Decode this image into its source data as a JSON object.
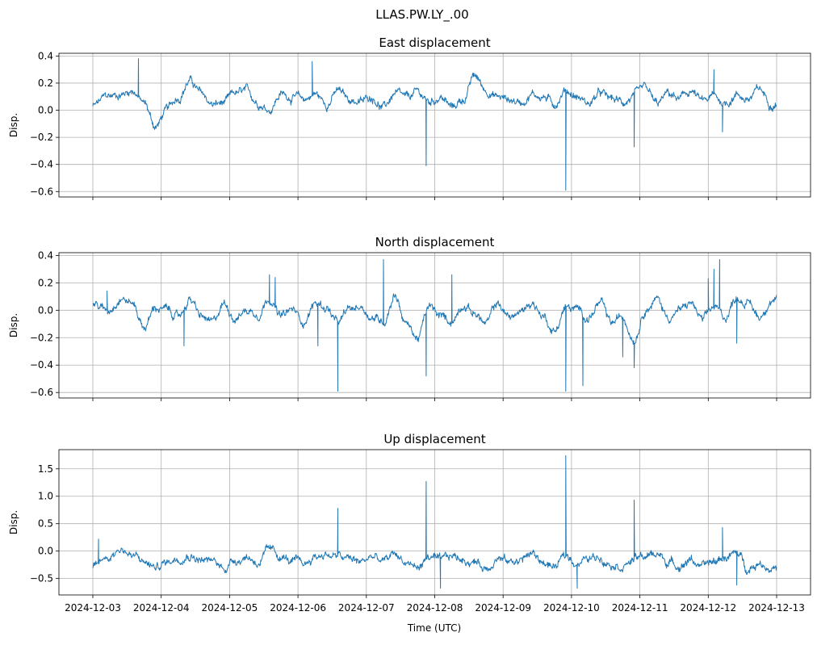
{
  "figure": {
    "suptitle": "LLAS.PW.LY_.00",
    "xlabel": "Time (UTC)",
    "x_tick_labels": [
      "2024-12-03",
      "2024-12-04",
      "2024-12-05",
      "2024-12-06",
      "2024-12-07",
      "2024-12-08",
      "2024-12-09",
      "2024-12-10",
      "2024-12-11",
      "2024-12-12",
      "2024-12-13"
    ],
    "line_color": "#1f77b4",
    "grid_color": "#b0b0b0"
  },
  "chart_data": [
    {
      "type": "line",
      "title": "East displacement",
      "ylabel": "Disp.",
      "x_range": [
        "2024-12-02T16:59",
        "2024-12-13T07:15"
      ],
      "ylim": [
        -0.64,
        0.42
      ],
      "yticks": [
        0.4,
        0.2,
        0.0,
        -0.2,
        -0.4,
        -0.6
      ],
      "ytick_labels": [
        "0.4",
        "0.2",
        "0.0",
        "−0.2",
        "−0.4",
        "−0.6"
      ],
      "grid": true,
      "series": [
        {
          "x": [
            "2024-12-03T00:00",
            "2024-12-03T05:00",
            "2024-12-03T10:00",
            "2024-12-03T14:00",
            "2024-12-03T18:00",
            "2024-12-03T22:00",
            "2024-12-04T02:00",
            "2024-12-04T06:00",
            "2024-12-04T10:00",
            "2024-12-04T14:00",
            "2024-12-04T18:00",
            "2024-12-04T22:00",
            "2024-12-05T02:00",
            "2024-12-05T06:00",
            "2024-12-05T10:00",
            "2024-12-05T14:00",
            "2024-12-05T18:00",
            "2024-12-05T22:00",
            "2024-12-06T02:00",
            "2024-12-06T06:00",
            "2024-12-06T10:00",
            "2024-12-06T14:00",
            "2024-12-06T18:00",
            "2024-12-06T22:00",
            "2024-12-07T02:00",
            "2024-12-07T06:00",
            "2024-12-07T10:00",
            "2024-12-07T14:00",
            "2024-12-07T18:00",
            "2024-12-07T22:00",
            "2024-12-08T02:00",
            "2024-12-08T06:00",
            "2024-12-08T10:00",
            "2024-12-08T14:00",
            "2024-12-08T18:00",
            "2024-12-08T22:00",
            "2024-12-09T02:00",
            "2024-12-09T06:00",
            "2024-12-09T10:00",
            "2024-12-09T14:00",
            "2024-12-09T18:00",
            "2024-12-09T22:00",
            "2024-12-10T02:00",
            "2024-12-10T06:00",
            "2024-12-10T10:00",
            "2024-12-10T14:00",
            "2024-12-10T18:00",
            "2024-12-10T22:00",
            "2024-12-11T02:00",
            "2024-12-11T06:00",
            "2024-12-11T10:00",
            "2024-12-11T14:00",
            "2024-12-11T18:00",
            "2024-12-11T22:00",
            "2024-12-12T02:00",
            "2024-12-12T06:00",
            "2024-12-12T10:00",
            "2024-12-12T14:00",
            "2024-12-12T18:00",
            "2024-12-12T22:00"
          ],
          "y": [
            0.03,
            0.1,
            0.12,
            0.15,
            0.05,
            -0.12,
            0.0,
            0.1,
            0.22,
            0.12,
            0.04,
            0.05,
            0.12,
            0.13,
            0.06,
            0.01,
            0.12,
            0.1,
            0.08,
            0.12,
            0.05,
            0.14,
            0.08,
            0.06,
            0.1,
            0.02,
            0.12,
            0.08,
            0.13,
            0.06,
            0.1,
            0.02,
            0.08,
            0.25,
            0.15,
            0.1,
            0.08,
            0.06,
            0.12,
            0.1,
            0.05,
            0.15,
            0.1,
            0.05,
            0.12,
            0.08,
            0.06,
            0.1,
            0.15,
            0.04,
            0.12,
            0.08,
            0.14,
            0.06,
            0.1,
            0.05,
            0.12,
            0.08,
            0.15,
            0.06
          ],
          "spikes": [
            {
              "x": "2024-12-03T16:00",
              "y": 0.38
            },
            {
              "x": "2024-12-06T05:00",
              "y": 0.36
            },
            {
              "x": "2024-12-07T21:00",
              "y": -0.41
            },
            {
              "x": "2024-12-09T22:00",
              "y": -0.59
            },
            {
              "x": "2024-12-10T22:00",
              "y": -0.27
            },
            {
              "x": "2024-12-12T02:00",
              "y": 0.3
            },
            {
              "x": "2024-12-12T05:00",
              "y": -0.16
            }
          ]
        }
      ]
    },
    {
      "type": "line",
      "title": "North displacement",
      "ylabel": "Disp.",
      "x_range": [
        "2024-12-02T16:59",
        "2024-12-13T07:15"
      ],
      "ylim": [
        -0.64,
        0.42
      ],
      "yticks": [
        0.4,
        0.2,
        0.0,
        -0.2,
        -0.4,
        -0.6
      ],
      "ytick_labels": [
        "0.4",
        "0.2",
        "0.0",
        "−0.2",
        "−0.4",
        "−0.6"
      ],
      "grid": true,
      "series": [
        {
          "x": [
            "2024-12-03T00:00",
            "2024-12-03T05:00",
            "2024-12-03T10:00",
            "2024-12-03T14:00",
            "2024-12-03T18:00",
            "2024-12-03T22:00",
            "2024-12-04T02:00",
            "2024-12-04T06:00",
            "2024-12-04T10:00",
            "2024-12-04T14:00",
            "2024-12-04T18:00",
            "2024-12-04T22:00",
            "2024-12-05T02:00",
            "2024-12-05T06:00",
            "2024-12-05T10:00",
            "2024-12-05T14:00",
            "2024-12-05T18:00",
            "2024-12-05T22:00",
            "2024-12-06T02:00",
            "2024-12-06T06:00",
            "2024-12-06T10:00",
            "2024-12-06T14:00",
            "2024-12-06T18:00",
            "2024-12-06T22:00",
            "2024-12-07T02:00",
            "2024-12-07T06:00",
            "2024-12-07T10:00",
            "2024-12-07T14:00",
            "2024-12-07T18:00",
            "2024-12-07T22:00",
            "2024-12-08T02:00",
            "2024-12-08T06:00",
            "2024-12-08T10:00",
            "2024-12-08T14:00",
            "2024-12-08T18:00",
            "2024-12-08T22:00",
            "2024-12-09T02:00",
            "2024-12-09T06:00",
            "2024-12-09T10:00",
            "2024-12-09T14:00",
            "2024-12-09T18:00",
            "2024-12-09T22:00",
            "2024-12-10T02:00",
            "2024-12-10T06:00",
            "2024-12-10T10:00",
            "2024-12-10T14:00",
            "2024-12-10T18:00",
            "2024-12-10T22:00",
            "2024-12-11T02:00",
            "2024-12-11T06:00",
            "2024-12-11T10:00",
            "2024-12-11T14:00",
            "2024-12-11T18:00",
            "2024-12-11T22:00",
            "2024-12-12T02:00",
            "2024-12-12T06:00",
            "2024-12-12T10:00",
            "2024-12-12T14:00",
            "2024-12-12T18:00",
            "2024-12-12T22:00"
          ],
          "y": [
            0.05,
            0.0,
            0.1,
            0.05,
            -0.12,
            0.02,
            0.0,
            -0.05,
            0.08,
            -0.05,
            -0.1,
            0.05,
            -0.05,
            0.0,
            -0.02,
            0.1,
            -0.05,
            0.0,
            -0.08,
            0.05,
            0.02,
            -0.1,
            0.0,
            0.03,
            -0.05,
            -0.08,
            0.12,
            -0.1,
            -0.2,
            0.02,
            -0.05,
            -0.08,
            0.05,
            -0.02,
            -0.1,
            0.05,
            -0.05,
            -0.02,
            0.06,
            -0.04,
            -0.15,
            0.02,
            0.0,
            -0.05,
            0.05,
            -0.1,
            -0.05,
            -0.2,
            0.02,
            0.08,
            -0.05,
            0.0,
            0.05,
            -0.08,
            0.02,
            -0.05,
            0.1,
            0.05,
            -0.05,
            0.08
          ],
          "spikes": [
            {
              "x": "2024-12-03T05:00",
              "y": 0.14
            },
            {
              "x": "2024-12-04T08:00",
              "y": -0.26
            },
            {
              "x": "2024-12-05T14:00",
              "y": 0.26
            },
            {
              "x": "2024-12-05T16:00",
              "y": 0.24
            },
            {
              "x": "2024-12-06T07:00",
              "y": -0.26
            },
            {
              "x": "2024-12-06T14:00",
              "y": -0.59
            },
            {
              "x": "2024-12-07T06:00",
              "y": 0.37
            },
            {
              "x": "2024-12-07T21:00",
              "y": -0.48
            },
            {
              "x": "2024-12-08T06:00",
              "y": 0.26
            },
            {
              "x": "2024-12-09T22:00",
              "y": -0.59
            },
            {
              "x": "2024-12-10T04:00",
              "y": -0.55
            },
            {
              "x": "2024-12-10T18:00",
              "y": -0.34
            },
            {
              "x": "2024-12-10T22:00",
              "y": -0.42
            },
            {
              "x": "2024-12-12T00:00",
              "y": 0.23
            },
            {
              "x": "2024-12-12T02:00",
              "y": 0.3
            },
            {
              "x": "2024-12-12T04:00",
              "y": 0.37
            },
            {
              "x": "2024-12-12T10:00",
              "y": -0.24
            }
          ]
        }
      ]
    },
    {
      "type": "line",
      "title": "Up displacement",
      "ylabel": "Disp.",
      "x_range": [
        "2024-12-02T16:59",
        "2024-12-13T07:15"
      ],
      "ylim": [
        -0.8,
        1.85
      ],
      "yticks": [
        1.5,
        1.0,
        0.5,
        0.0,
        -0.5
      ],
      "ytick_labels": [
        "1.5",
        "1.0",
        "0.5",
        "0.0",
        "−0.5"
      ],
      "grid": true,
      "series": [
        {
          "x": [
            "2024-12-03T00:00",
            "2024-12-03T05:00",
            "2024-12-03T10:00",
            "2024-12-03T14:00",
            "2024-12-03T18:00",
            "2024-12-03T22:00",
            "2024-12-04T02:00",
            "2024-12-04T06:00",
            "2024-12-04T10:00",
            "2024-12-04T14:00",
            "2024-12-04T18:00",
            "2024-12-04T22:00",
            "2024-12-05T02:00",
            "2024-12-05T06:00",
            "2024-12-05T10:00",
            "2024-12-05T14:00",
            "2024-12-05T18:00",
            "2024-12-05T22:00",
            "2024-12-06T02:00",
            "2024-12-06T06:00",
            "2024-12-06T10:00",
            "2024-12-06T14:00",
            "2024-12-06T18:00",
            "2024-12-06T22:00",
            "2024-12-07T02:00",
            "2024-12-07T06:00",
            "2024-12-07T10:00",
            "2024-12-07T14:00",
            "2024-12-07T18:00",
            "2024-12-07T22:00",
            "2024-12-08T02:00",
            "2024-12-08T06:00",
            "2024-12-08T10:00",
            "2024-12-08T14:00",
            "2024-12-08T18:00",
            "2024-12-08T22:00",
            "2024-12-09T02:00",
            "2024-12-09T06:00",
            "2024-12-09T10:00",
            "2024-12-09T14:00",
            "2024-12-09T18:00",
            "2024-12-09T22:00",
            "2024-12-10T02:00",
            "2024-12-10T06:00",
            "2024-12-10T10:00",
            "2024-12-10T14:00",
            "2024-12-10T18:00",
            "2024-12-10T22:00",
            "2024-12-11T02:00",
            "2024-12-11T06:00",
            "2024-12-11T10:00",
            "2024-12-11T14:00",
            "2024-12-11T18:00",
            "2024-12-11T22:00",
            "2024-12-12T02:00",
            "2024-12-12T06:00",
            "2024-12-12T10:00",
            "2024-12-12T14:00",
            "2024-12-12T18:00",
            "2024-12-12T22:00"
          ],
          "y": [
            -0.3,
            -0.1,
            0.05,
            -0.1,
            -0.2,
            -0.3,
            -0.2,
            -0.1,
            -0.05,
            -0.15,
            -0.2,
            -0.3,
            -0.15,
            -0.1,
            -0.2,
            0.0,
            -0.1,
            -0.2,
            -0.25,
            -0.1,
            -0.05,
            -0.1,
            -0.15,
            -0.2,
            -0.1,
            -0.2,
            -0.05,
            -0.2,
            -0.3,
            -0.1,
            -0.2,
            -0.1,
            -0.15,
            -0.2,
            -0.3,
            -0.1,
            -0.2,
            -0.15,
            -0.05,
            -0.2,
            -0.3,
            -0.1,
            -0.2,
            -0.15,
            -0.1,
            -0.2,
            -0.25,
            -0.15,
            -0.1,
            -0.05,
            -0.2,
            -0.25,
            -0.15,
            -0.3,
            -0.2,
            -0.1,
            -0.05,
            -0.3,
            -0.2,
            -0.3
          ],
          "spikes": [
            {
              "x": "2024-12-03T02:00",
              "y": 0.22
            },
            {
              "x": "2024-12-06T14:00",
              "y": 0.78
            },
            {
              "x": "2024-12-07T21:00",
              "y": 1.27
            },
            {
              "x": "2024-12-08T02:00",
              "y": -0.68
            },
            {
              "x": "2024-12-09T22:00",
              "y": 1.74
            },
            {
              "x": "2024-12-10T02:00",
              "y": -0.68
            },
            {
              "x": "2024-12-10T22:00",
              "y": 0.93
            },
            {
              "x": "2024-12-12T05:00",
              "y": 0.43
            },
            {
              "x": "2024-12-12T10:00",
              "y": -0.62
            }
          ]
        }
      ]
    }
  ]
}
